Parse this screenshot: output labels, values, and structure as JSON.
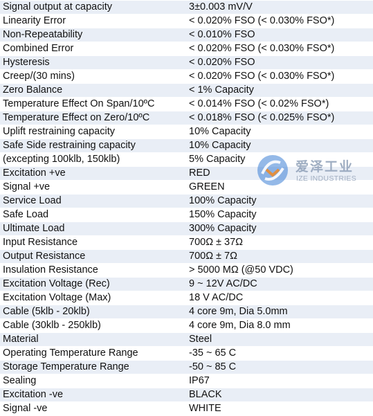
{
  "specs": [
    {
      "label": "Signal output at capacity",
      "value": "3±0.003 mV/V"
    },
    {
      "label": "Linearity Error",
      "value": "< 0.020% FSO (< 0.030% FSO*)"
    },
    {
      "label": "Non-Repeatability",
      "value": "< 0.010% FSO"
    },
    {
      "label": "Combined Error",
      "value": "< 0.020% FSO (< 0.030% FSO*)"
    },
    {
      "label": "Hysteresis",
      "value": "< 0.020% FSO"
    },
    {
      "label": "Creep/(30 mins)",
      "value": "< 0.020% FSO (< 0.030% FSO*)"
    },
    {
      "label": "Zero Balance",
      "value": "< 1% Capacity"
    },
    {
      "label": "Temperature Effect On Span/10ºC",
      "value": "< 0.014% FSO (< 0.02% FSO*)"
    },
    {
      "label": "Temperature Effect on Zero/10ºC",
      "value": "< 0.018% FSO (< 0.025% FSO*)"
    },
    {
      "label": "Uplift restraining capacity",
      "value": "10% Capacity"
    },
    {
      "label": "Safe Side restraining capacity",
      "value": "10% Capacity"
    },
    {
      "label": "(excepting 100klb, 150klb)",
      "value": "5% Capacity"
    },
    {
      "label": "Excitation +ve",
      "value": "RED"
    },
    {
      "label": "Signal +ve",
      "value": "GREEN"
    },
    {
      "label": "Service Load",
      "value": "100% Capacity"
    },
    {
      "label": "Safe Load",
      "value": "150% Capacity"
    },
    {
      "label": "Ultimate Load",
      "value": "300% Capacity"
    },
    {
      "label": "Input Resistance",
      "value": "700Ω ± 37Ω"
    },
    {
      "label": "Output Resistance",
      "value": "700Ω ± 7Ω"
    },
    {
      "label": "Insulation Resistance",
      "value": "> 5000 MΩ (@50 VDC)"
    },
    {
      "label": "Excitation Voltage (Rec)",
      "value": "9 ~ 12V AC/DC"
    },
    {
      "label": "Excitation Voltage (Max)",
      "value": "18 V AC/DC"
    },
    {
      "label": "Cable (5klb - 20klb)",
      "value": "4 core 9m, Dia 5.0mm"
    },
    {
      "label": "Cable (30klb - 250klb)",
      "value": "4 core 9m, Dia 8.0 mm"
    },
    {
      "label": "Material",
      "value": "Steel"
    },
    {
      "label": "Operating Temperature Range",
      "value": "-35 ~ 65 C"
    },
    {
      "label": "Storage Temperature Range",
      "value": "-50 ~ 85 C"
    },
    {
      "label": "Sealing",
      "value": "IP67"
    },
    {
      "label": "Excitation -ve",
      "value": "BLACK"
    },
    {
      "label": "Signal -ve",
      "value": "WHITE"
    }
  ],
  "watermark": {
    "chinese_text": "爱泽工业",
    "english_text": "IZE INDUSTRIES",
    "logo_icon": "ize-logo-icon",
    "colors": {
      "logo_blue": "#3d7fd6",
      "logo_orange": "#f08a24",
      "text": "#8fa0b8"
    }
  },
  "colors": {
    "row_band": "#e9eef6",
    "row_plain": "#ffffff",
    "text": "#111111"
  }
}
